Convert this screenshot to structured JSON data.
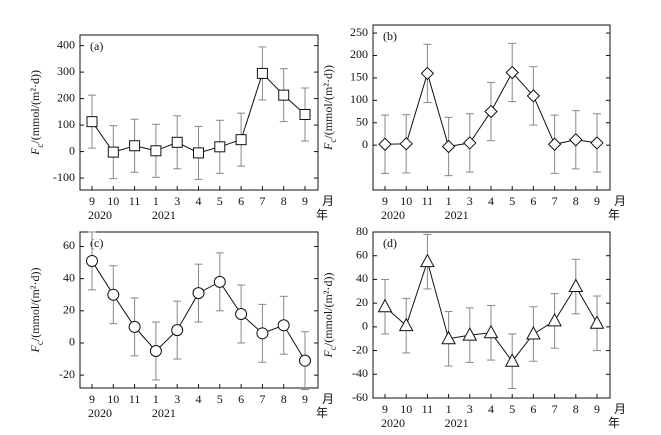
{
  "chart_data": [
    {
      "type": "line",
      "label": "(a)",
      "marker": "square",
      "color": "#111",
      "error_color": "#888",
      "ylabel": {
        "main": "F",
        "sub": "c",
        "rest": "/(mmol/(m²·d))"
      },
      "categories": [
        "9",
        "10",
        "11",
        "1",
        "3",
        "4",
        "5",
        "6",
        "7",
        "8",
        "9"
      ],
      "year_labels": [
        "2020",
        null,
        null,
        "2021",
        null,
        null,
        null,
        null,
        null,
        null,
        null
      ],
      "month_unit": "月",
      "year_unit": "年",
      "values": [
        113,
        -2,
        22,
        3,
        35,
        -5,
        18,
        45,
        295,
        213,
        140
      ],
      "errors": [
        100,
        100,
        100,
        100,
        100,
        100,
        100,
        100,
        100,
        100,
        100
      ],
      "ylim": [
        -145,
        440
      ],
      "yticks": [
        -100,
        0,
        100,
        200,
        300,
        400
      ]
    },
    {
      "type": "line",
      "label": "(b)",
      "marker": "diamond",
      "color": "#111",
      "error_color": "#888",
      "ylabel": {
        "main": "F",
        "sub": "c",
        "rest": "/(mmol/(m²·d))"
      },
      "categories": [
        "9",
        "10",
        "11",
        "1",
        "3",
        "4",
        "5",
        "6",
        "7",
        "8",
        "9"
      ],
      "year_labels": [
        "2020",
        null,
        null,
        "2021",
        null,
        null,
        null,
        null,
        null,
        null,
        null
      ],
      "month_unit": "月",
      "year_unit": "年",
      "values": [
        2,
        3,
        160,
        -3,
        5,
        75,
        162,
        110,
        2,
        12,
        5
      ],
      "errors": [
        65,
        65,
        65,
        65,
        65,
        65,
        65,
        65,
        65,
        65,
        65
      ],
      "ylim": [
        -100,
        268
      ],
      "yticks": [
        0,
        50,
        100,
        150,
        200,
        250
      ]
    },
    {
      "type": "line",
      "label": "(c)",
      "marker": "circle",
      "color": "#111",
      "error_color": "#888",
      "ylabel": {
        "main": "F",
        "sub": "c",
        "rest": "/(mmol/(m²·d))"
      },
      "categories": [
        "9",
        "10",
        "11",
        "1",
        "3",
        "4",
        "5",
        "6",
        "7",
        "8",
        "9"
      ],
      "year_labels": [
        "2020",
        null,
        null,
        "2021",
        null,
        null,
        null,
        null,
        null,
        null,
        null
      ],
      "month_unit": "月",
      "year_unit": "年",
      "values": [
        51,
        30,
        10,
        -5,
        8,
        31,
        38,
        18,
        6,
        11,
        -11
      ],
      "errors": [
        18,
        18,
        18,
        18,
        18,
        18,
        18,
        18,
        18,
        18,
        18
      ],
      "ylim": [
        -28,
        69
      ],
      "yticks": [
        -20,
        0,
        20,
        40,
        60
      ]
    },
    {
      "type": "line",
      "label": "(d)",
      "marker": "triangle",
      "color": "#111",
      "error_color": "#888",
      "ylabel": {
        "main": "F",
        "sub": "c",
        "rest": "/(mmol/(m²·d))"
      },
      "categories": [
        "9",
        "10",
        "11",
        "1",
        "3",
        "4",
        "5",
        "6",
        "7",
        "8",
        "9"
      ],
      "year_labels": [
        "2020",
        null,
        null,
        "2021",
        null,
        null,
        null,
        null,
        null,
        null,
        null
      ],
      "month_unit": "月",
      "year_unit": "年",
      "values": [
        17,
        1,
        55,
        -10,
        -7,
        -5,
        -29,
        -6,
        5,
        34,
        3
      ],
      "errors": [
        23,
        23,
        23,
        23,
        23,
        23,
        23,
        23,
        23,
        23,
        23
      ],
      "ylim": [
        -60,
        80
      ],
      "yticks": [
        -60,
        -40,
        -20,
        0,
        20,
        40,
        60,
        80
      ]
    }
  ]
}
